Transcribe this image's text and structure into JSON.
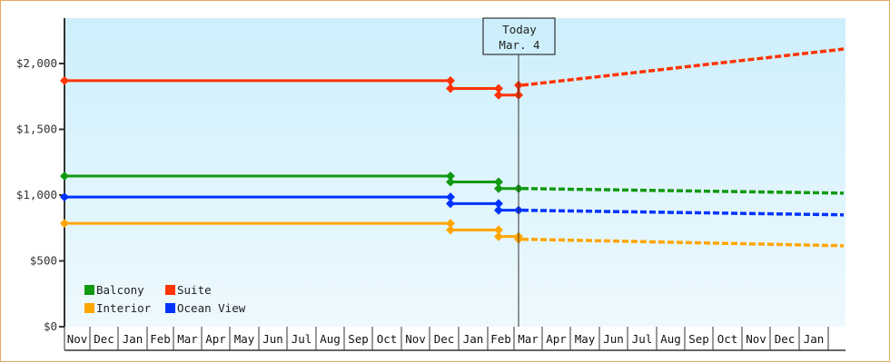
{
  "chart_data": {
    "type": "line",
    "title": "",
    "xlabel": "",
    "ylabel": "",
    "ylim": [
      0,
      2350
    ],
    "y_ticks": [
      {
        "value": 0,
        "label": "$0"
      },
      {
        "value": 500,
        "label": "$500"
      },
      {
        "value": 1000,
        "label": "$1,000"
      },
      {
        "value": 1500,
        "label": "$1,500"
      },
      {
        "value": 2000,
        "label": "$2,000"
      }
    ],
    "x_ticks": [
      "Nov",
      "Dec",
      "Jan",
      "Feb",
      "Mar",
      "Apr",
      "May",
      "Jun",
      "Jul",
      "Aug",
      "Sep",
      "Oct",
      "Nov",
      "Dec",
      "Jan",
      "Feb",
      "Mar",
      "Apr",
      "May",
      "Jun",
      "Jul",
      "Aug",
      "Sep",
      "Oct",
      "Nov",
      "Dec",
      "Jan"
    ],
    "today_marker": {
      "line1": "Today",
      "line2": "Mar. 4"
    },
    "legend_position": "bottom-left inside plot",
    "grid": false,
    "series": [
      {
        "name": "Balcony",
        "color": "#119911",
        "history": [
          {
            "x": "Nov (start)",
            "y": 1145
          },
          {
            "x": "early Dec",
            "y": 1145
          },
          {
            "x": "early Dec",
            "y": 1100
          },
          {
            "x": "mid Feb",
            "y": 1100
          },
          {
            "x": "mid Feb",
            "y": 1050
          },
          {
            "x": "Mar 4",
            "y": 1050
          }
        ],
        "projection": [
          {
            "x": "Mar 4",
            "y": 1050
          },
          {
            "x": "Jan (end)",
            "y": 1015
          }
        ]
      },
      {
        "name": "Suite",
        "color": "#ff3300",
        "history": [
          {
            "x": "Nov (start)",
            "y": 1870
          },
          {
            "x": "early Dec",
            "y": 1870
          },
          {
            "x": "early Dec",
            "y": 1810
          },
          {
            "x": "mid Feb",
            "y": 1810
          },
          {
            "x": "mid Feb",
            "y": 1760
          },
          {
            "x": "Mar 4",
            "y": 1760
          },
          {
            "x": "Mar 4",
            "y": 1835
          }
        ],
        "projection": [
          {
            "x": "Mar 4",
            "y": 1835
          },
          {
            "x": "Jan (end)",
            "y": 2110
          }
        ]
      },
      {
        "name": "Interior",
        "color": "#ffa500",
        "history": [
          {
            "x": "Nov (start)",
            "y": 785
          },
          {
            "x": "early Dec",
            "y": 785
          },
          {
            "x": "early Dec",
            "y": 735
          },
          {
            "x": "mid Feb",
            "y": 735
          },
          {
            "x": "mid Feb",
            "y": 685
          },
          {
            "x": "Mar 4",
            "y": 685
          },
          {
            "x": "Mar 4",
            "y": 665
          }
        ],
        "projection": [
          {
            "x": "Mar 4",
            "y": 665
          },
          {
            "x": "Jan (end)",
            "y": 615
          }
        ]
      },
      {
        "name": "Ocean View",
        "color": "#0033ff",
        "history": [
          {
            "x": "Nov (start)",
            "y": 985
          },
          {
            "x": "early Dec",
            "y": 985
          },
          {
            "x": "early Dec",
            "y": 935
          },
          {
            "x": "mid Feb",
            "y": 935
          },
          {
            "x": "mid Feb",
            "y": 885
          },
          {
            "x": "Mar 4",
            "y": 885
          }
        ],
        "projection": [
          {
            "x": "Mar 4",
            "y": 885
          },
          {
            "x": "Jan (end)",
            "y": 850
          }
        ]
      }
    ]
  },
  "legend": [
    {
      "label": "Balcony",
      "color": "#119911"
    },
    {
      "label": "Suite",
      "color": "#ff3300"
    },
    {
      "label": "Interior",
      "color": "#ffa500"
    },
    {
      "label": "Ocean View",
      "color": "#0033ff"
    }
  ],
  "today": {
    "line1": "Today",
    "line2": "Mar. 4"
  }
}
